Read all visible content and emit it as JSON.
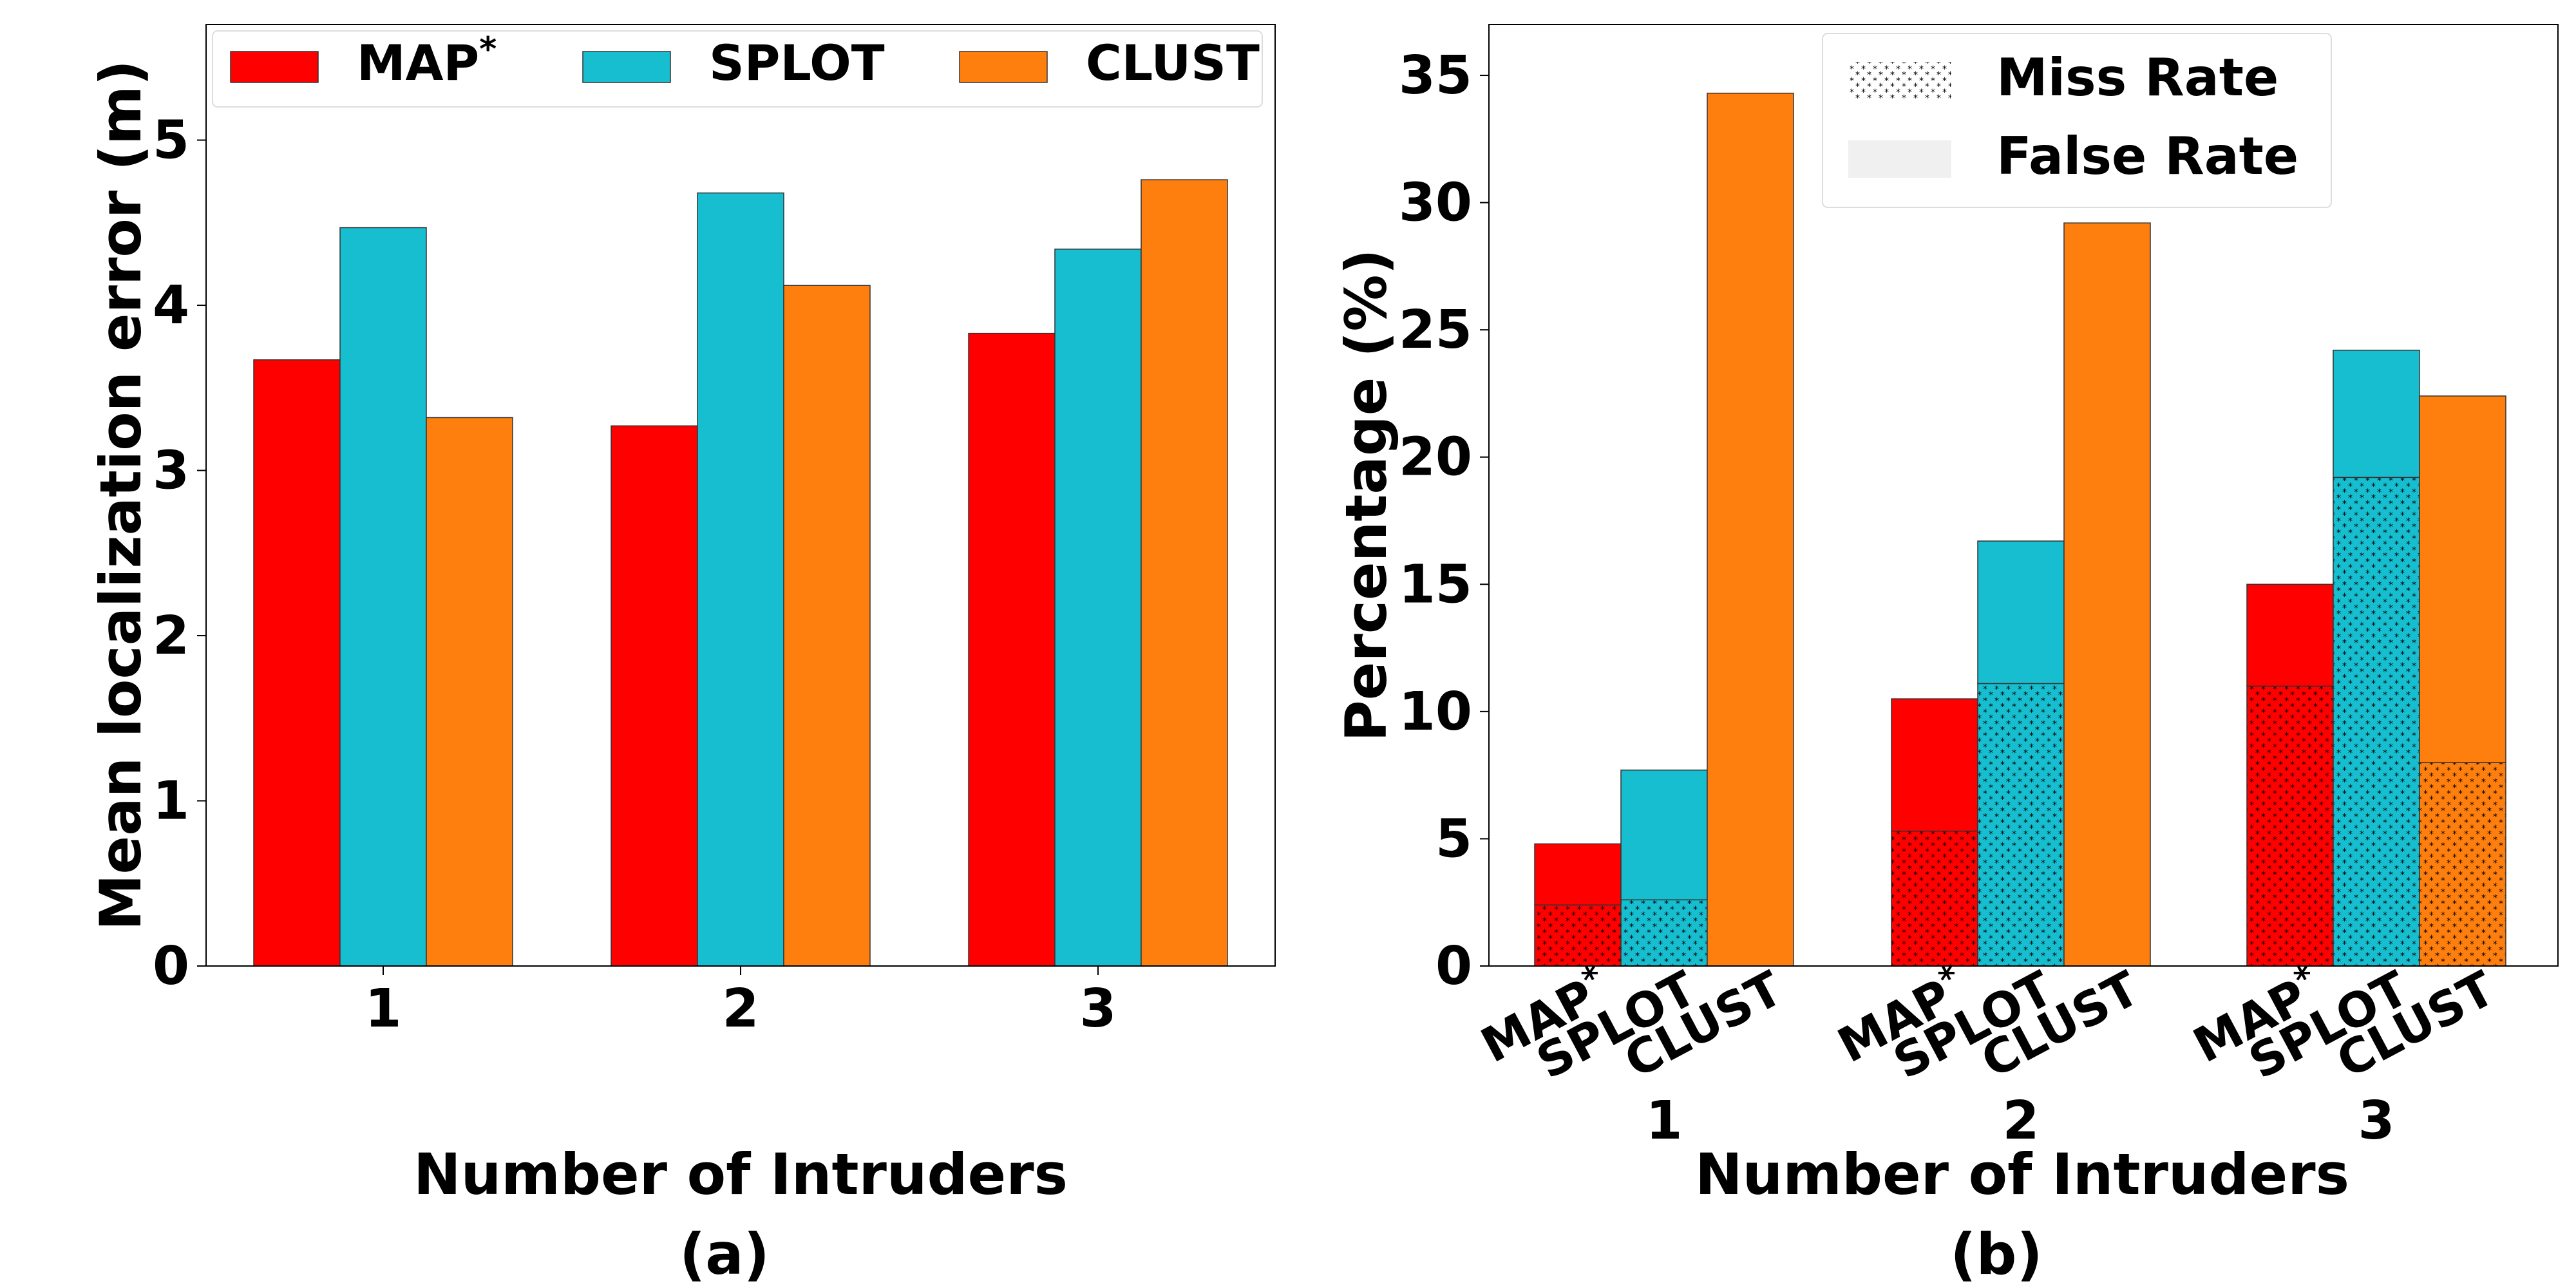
{
  "colors": {
    "MAP*": "#ff0000",
    "SPLOT": "#17becf",
    "CLUST": "#ff7f0e"
  },
  "chart_data": [
    {
      "type": "bar",
      "panel_label": "(a)",
      "xlabel": "Number of Intruders",
      "ylabel": "Mean localization error (m)",
      "categories": [
        "1",
        "2",
        "3"
      ],
      "ylim": [
        0,
        5.7
      ],
      "yticks": [
        0,
        1,
        2,
        3,
        4,
        5
      ],
      "legend": {
        "placement": "top",
        "columns": 3
      },
      "grid": false,
      "series": [
        {
          "name": "MAP",
          "name_superscript": "*",
          "key": "MAP*",
          "values": [
            3.67,
            3.27,
            3.83
          ]
        },
        {
          "name": "SPLOT",
          "key": "SPLOT",
          "values": [
            4.47,
            4.68,
            4.34
          ]
        },
        {
          "name": "CLUST",
          "key": "CLUST",
          "values": [
            3.32,
            4.12,
            4.76
          ]
        }
      ]
    },
    {
      "type": "bar",
      "stacked": true,
      "panel_label": "(b)",
      "xlabel": "Number of Intruders",
      "ylabel": "Percentage (%)",
      "groups": [
        "1",
        "2",
        "3"
      ],
      "methods": [
        {
          "name": "MAP",
          "superscript": "*",
          "key": "MAP*"
        },
        {
          "name": "SPLOT",
          "key": "SPLOT"
        },
        {
          "name": "CLUST",
          "key": "CLUST"
        }
      ],
      "ylim": [
        0,
        37
      ],
      "yticks": [
        0,
        5,
        10,
        15,
        20,
        25,
        30,
        35
      ],
      "legend": {
        "placement": "top-center",
        "entries": [
          {
            "label": "Miss Rate",
            "hatch": "stars"
          },
          {
            "label": "False Rate",
            "hatch": "none"
          }
        ]
      },
      "grid": false,
      "series": [
        {
          "name": "Miss Rate",
          "values": {
            "MAP*": [
              2.4,
              5.3,
              11.0
            ],
            "SPLOT": [
              2.6,
              11.1,
              19.2
            ],
            "CLUST": [
              0,
              0,
              8.0
            ]
          }
        },
        {
          "name": "False Rate",
          "values": {
            "MAP*": [
              2.4,
              5.2,
              4.0
            ],
            "SPLOT": [
              5.1,
              5.6,
              5.0
            ],
            "CLUST": [
              34.3,
              29.2,
              14.4
            ]
          }
        }
      ]
    }
  ]
}
